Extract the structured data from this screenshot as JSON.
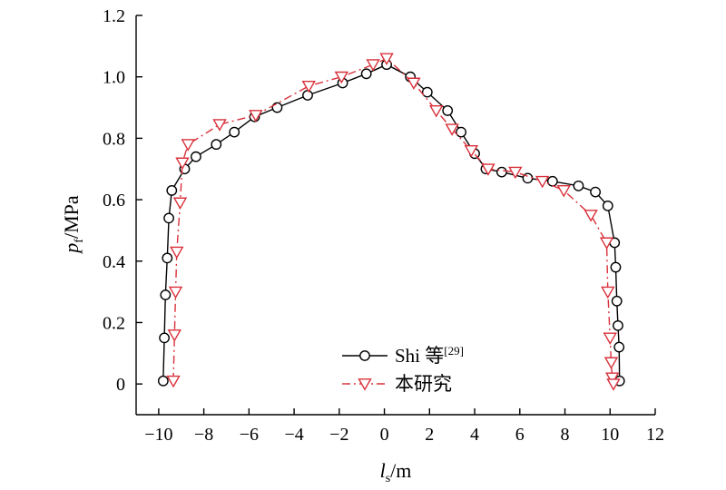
{
  "chart_data": {
    "type": "line",
    "xlabel": {
      "main": "l",
      "sub": "s",
      "unit": "/m"
    },
    "ylabel": {
      "main": "p",
      "sub": "f",
      "unit": "/MPa"
    },
    "xlim": [
      -11,
      12
    ],
    "ylim": [
      -0.1,
      1.2
    ],
    "xticks": [
      -10,
      -8,
      -6,
      -4,
      -2,
      0,
      2,
      4,
      6,
      8,
      10,
      12
    ],
    "xtick_labels": [
      "−10",
      "−8",
      "−6",
      "−4",
      "−2",
      "0",
      "2",
      "4",
      "6",
      "8",
      "10",
      "12"
    ],
    "yticks": [
      0,
      0.2,
      0.4,
      0.6,
      0.8,
      1.0,
      1.2
    ],
    "ytick_labels": [
      "0",
      "0.2",
      "0.4",
      "0.6",
      "0.8",
      "1.0",
      "1.2"
    ],
    "grid": false,
    "legend_position": "lower-center",
    "series": [
      {
        "name": "Shi 等",
        "name_sup": "[29]",
        "color": "#000000",
        "line_style": "solid",
        "marker": "circle",
        "x": [
          -9.8,
          -9.75,
          -9.7,
          -9.62,
          -9.55,
          -9.42,
          -8.85,
          -8.35,
          -7.45,
          -6.65,
          -5.75,
          -4.75,
          -3.4,
          -1.85,
          -0.8,
          0.1,
          1.15,
          1.9,
          2.8,
          3.4,
          4.0,
          4.5,
          5.2,
          6.35,
          7.45,
          8.6,
          9.35,
          9.9,
          10.2,
          10.25,
          10.3,
          10.35,
          10.4,
          10.42
        ],
        "y": [
          0.01,
          0.15,
          0.29,
          0.41,
          0.54,
          0.63,
          0.7,
          0.74,
          0.78,
          0.82,
          0.87,
          0.9,
          0.94,
          0.98,
          1.01,
          1.04,
          1.0,
          0.95,
          0.89,
          0.82,
          0.75,
          0.7,
          0.69,
          0.67,
          0.66,
          0.645,
          0.625,
          0.58,
          0.46,
          0.38,
          0.27,
          0.19,
          0.12,
          0.01
        ]
      },
      {
        "name": "本研究",
        "color": "#d9303a",
        "line_style": "dashdot",
        "marker": "triangle-down",
        "x": [
          -9.35,
          -9.3,
          -9.25,
          -9.2,
          -9.05,
          -8.95,
          -8.7,
          -7.3,
          -5.7,
          -3.35,
          -1.9,
          -0.5,
          0.1,
          1.3,
          2.3,
          3.0,
          3.85,
          4.6,
          5.8,
          7.0,
          7.95,
          9.15,
          9.85,
          9.9,
          10.0,
          10.05,
          10.1,
          10.15
        ],
        "y": [
          0.01,
          0.16,
          0.3,
          0.43,
          0.59,
          0.72,
          0.78,
          0.845,
          0.875,
          0.97,
          1.0,
          1.04,
          1.06,
          0.98,
          0.89,
          0.83,
          0.76,
          0.7,
          0.69,
          0.66,
          0.63,
          0.55,
          0.46,
          0.3,
          0.15,
          0.07,
          0.02,
          0.0
        ]
      }
    ]
  }
}
